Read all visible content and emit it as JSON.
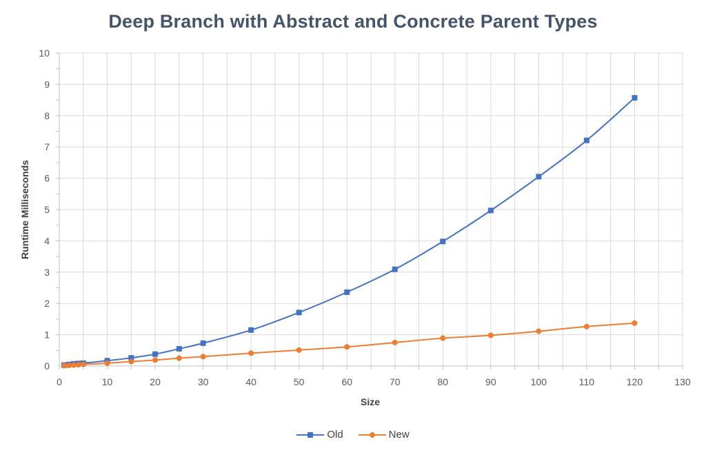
{
  "chart_data": {
    "type": "line",
    "title": "Deep Branch with Abstract and Concrete Parent Types",
    "xlabel": "Size",
    "ylabel": "Runtime Milliseconds",
    "xlim": [
      0,
      130
    ],
    "ylim": [
      0,
      10
    ],
    "x_ticks": [
      "0",
      "10",
      "20",
      "30",
      "40",
      "50",
      "60",
      "70",
      "80",
      "90",
      "100",
      "110",
      "120",
      "130"
    ],
    "y_ticks": [
      "0",
      "1",
      "2",
      "3",
      "4",
      "5",
      "6",
      "7",
      "8",
      "9",
      "10"
    ],
    "grid": true,
    "legend_position": "bottom",
    "series": [
      {
        "name": "Old",
        "color": "#4472c4",
        "marker": "square",
        "x": [
          1,
          2,
          3,
          4,
          5,
          10,
          15,
          20,
          25,
          30,
          40,
          50,
          60,
          70,
          80,
          90,
          100,
          110,
          120
        ],
        "y": [
          0.03,
          0.05,
          0.07,
          0.08,
          0.09,
          0.17,
          0.26,
          0.38,
          0.55,
          0.73,
          1.15,
          1.71,
          2.36,
          3.09,
          3.98,
          4.97,
          6.05,
          7.21,
          8.57
        ]
      },
      {
        "name": "New",
        "color": "#ed7d31",
        "marker": "circle",
        "x": [
          1,
          2,
          3,
          4,
          5,
          10,
          15,
          20,
          25,
          30,
          40,
          50,
          60,
          70,
          80,
          90,
          100,
          110,
          120
        ],
        "y": [
          0.01,
          0.02,
          0.03,
          0.04,
          0.05,
          0.09,
          0.14,
          0.19,
          0.25,
          0.3,
          0.41,
          0.51,
          0.61,
          0.75,
          0.89,
          0.98,
          1.11,
          1.26,
          1.37
        ]
      }
    ]
  }
}
